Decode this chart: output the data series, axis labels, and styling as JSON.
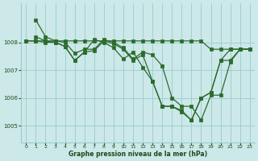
{
  "background_color": "#cce8e8",
  "grid_color": "#99cccc",
  "line_color": "#2d6b2d",
  "title": "Graphe pression niveau de la mer (hPa)",
  "title_color": "#1a4a1a",
  "xlim": [
    -0.5,
    23.5
  ],
  "ylim": [
    1004.4,
    1009.4
  ],
  "yticks": [
    1005,
    1006,
    1007,
    1008
  ],
  "xticks": [
    0,
    1,
    2,
    3,
    4,
    5,
    6,
    7,
    8,
    9,
    10,
    11,
    12,
    13,
    14,
    15,
    16,
    17,
    18,
    19,
    20,
    21,
    22,
    23
  ],
  "line1": {
    "x": [
      1,
      2,
      3,
      4,
      5,
      6,
      7,
      8,
      9,
      10,
      11,
      12,
      13,
      14,
      15,
      16,
      17,
      18,
      19,
      20,
      21,
      22,
      23
    ],
    "y": [
      1008.8,
      1008.2,
      1008.05,
      1008.0,
      1007.6,
      1007.75,
      1007.75,
      1008.1,
      1008.0,
      1007.8,
      1007.4,
      1007.65,
      1007.55,
      1007.15,
      1006.0,
      1005.7,
      1005.7,
      1005.2,
      1006.1,
      1006.1,
      1007.3,
      1007.75,
      1007.75
    ]
  },
  "line2": {
    "x": [
      1,
      2,
      3,
      4,
      5,
      6,
      7,
      8,
      9,
      10,
      11,
      12,
      13,
      14,
      15,
      16,
      17,
      18,
      19,
      20,
      21,
      22,
      23
    ],
    "y": [
      1008.2,
      1008.05,
      1008.0,
      1007.85,
      1007.35,
      1007.65,
      1007.7,
      1008.05,
      1007.95,
      1007.75,
      1007.35,
      1007.55,
      1006.6,
      1005.7,
      1005.7,
      1005.5,
      1005.2,
      1006.0,
      1006.2,
      1007.35,
      1007.75,
      1007.75,
      1007.75
    ]
  },
  "line3": {
    "x": [
      0,
      1,
      2,
      3,
      4,
      5,
      6,
      7,
      8,
      9,
      10,
      11,
      12,
      13,
      14,
      15,
      16,
      17,
      18,
      19,
      20,
      21,
      22,
      23
    ],
    "y": [
      1008.05,
      1008.05,
      1008.05,
      1008.05,
      1008.05,
      1008.05,
      1008.05,
      1008.05,
      1008.05,
      1008.05,
      1008.05,
      1008.05,
      1008.05,
      1008.05,
      1008.05,
      1008.05,
      1008.05,
      1008.05,
      1008.05,
      1007.75,
      1007.75,
      1007.75,
      1007.75,
      1007.75
    ]
  },
  "line4": {
    "x": [
      0,
      1,
      2,
      3,
      4,
      5,
      6,
      7,
      8,
      9,
      10,
      11,
      12,
      13,
      14,
      15,
      16,
      17,
      18,
      19,
      20,
      21,
      22,
      23
    ],
    "y": [
      1008.05,
      1008.05,
      1008.0,
      1008.0,
      1007.85,
      1007.35,
      1007.65,
      1008.1,
      1008.0,
      1007.8,
      1007.4,
      1007.65,
      1007.1,
      1006.6,
      1005.7,
      1005.7,
      1005.55,
      1005.2,
      1006.0,
      1006.2,
      1007.35,
      1007.35,
      1007.75,
      1007.75
    ]
  }
}
